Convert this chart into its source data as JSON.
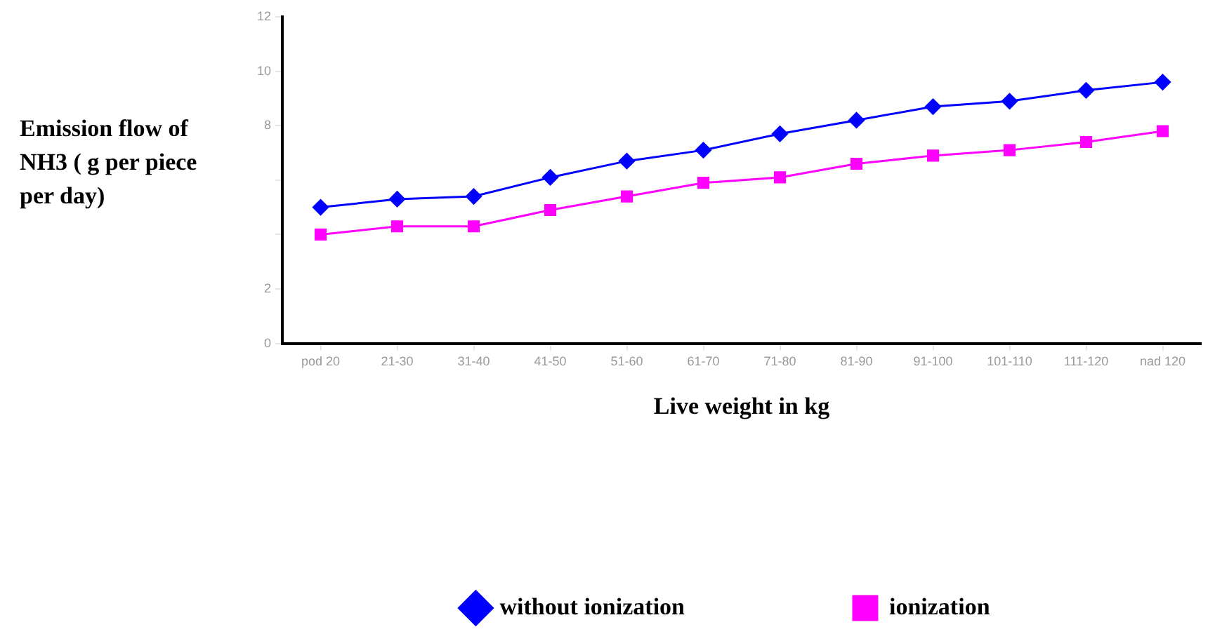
{
  "chart_data": {
    "type": "line",
    "ylabel": "Emission flow of NH3 ( g per piece per day)",
    "xlabel": "Live weight in kg",
    "categories": [
      "pod 20",
      "21-30",
      "31-40",
      "41-50",
      "51-60",
      "61-70",
      "71-80",
      "81-90",
      "91-100",
      "101-110",
      "111-120",
      "nad 120"
    ],
    "series": [
      {
        "name": "without ionization",
        "color": "#0000ff",
        "marker": "diamond",
        "values": [
          5.0,
          5.3,
          5.4,
          6.1,
          6.7,
          7.1,
          7.7,
          8.2,
          8.7,
          8.9,
          9.3,
          9.6
        ]
      },
      {
        "name": "ionization",
        "color": "#ff00ff",
        "marker": "square",
        "values": [
          4.0,
          4.3,
          4.3,
          4.9,
          5.4,
          5.9,
          6.1,
          6.6,
          6.9,
          7.1,
          7.4,
          7.8
        ]
      }
    ],
    "ylim": [
      0,
      12
    ],
    "yticks": [
      0,
      2,
      {
        "value": 4,
        "label": null
      },
      {
        "value": 6,
        "label": null
      },
      8,
      10,
      12
    ],
    "grid": false,
    "legend": "bottom",
    "line_style": "solid"
  }
}
